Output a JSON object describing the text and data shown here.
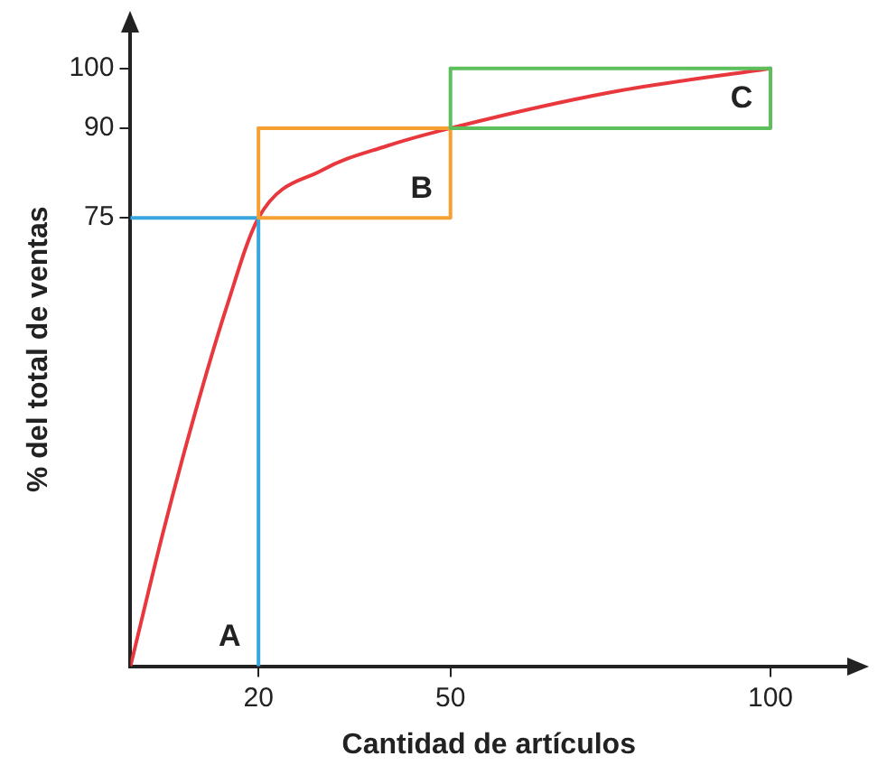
{
  "chart_data": {
    "type": "line",
    "xlabel": "Cantidad de artículos",
    "ylabel": "% del total de ventas",
    "xlim": [
      0,
      112
    ],
    "ylim": [
      0,
      106
    ],
    "xticks": [
      20,
      50,
      100
    ],
    "yticks": [
      75,
      90,
      100
    ],
    "grid": false,
    "legend": false,
    "marker": "none",
    "line_style": "solid",
    "series": [
      {
        "name": "A",
        "color": "#3aa6e0",
        "x": [
          0,
          20,
          20
        ],
        "values": [
          75,
          75,
          0
        ]
      },
      {
        "name": "B",
        "color": "#f5a033",
        "x": [
          20,
          20,
          50,
          50
        ],
        "values": [
          90,
          75,
          75,
          90
        ]
      },
      {
        "color": "#f5a033",
        "x": [
          20,
          50
        ],
        "values": [
          90,
          90
        ]
      },
      {
        "name": "C",
        "color": "#5cbf5c",
        "x": [
          50,
          50,
          100,
          100
        ],
        "values": [
          100,
          90,
          90,
          100
        ]
      },
      {
        "color": "#5cbf5c",
        "x": [
          50,
          100
        ],
        "values": [
          100,
          100
        ]
      },
      {
        "color": "#e8383d",
        "x": [
          0,
          5,
          10,
          15,
          20,
          30,
          40,
          50,
          75,
          100
        ],
        "values": [
          0,
          22,
          42,
          60,
          75,
          83,
          87,
          90,
          96,
          100
        ]
      }
    ]
  }
}
